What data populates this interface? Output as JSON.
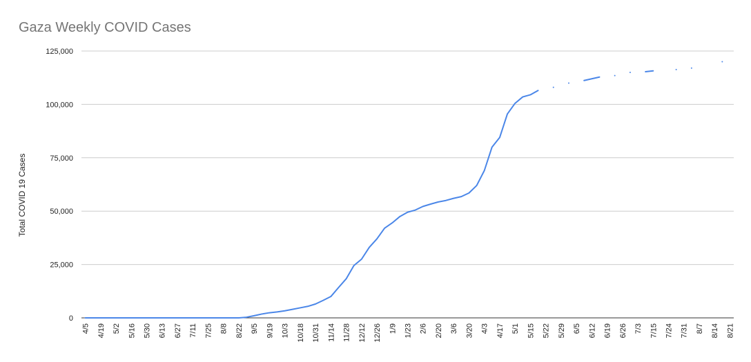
{
  "chart_data": {
    "type": "line",
    "title": "Gaza Weekly COVID Cases",
    "y_label": "Total COVID 19 Cases",
    "categories": [
      "4/5",
      null,
      "4/19",
      null,
      "5/2",
      null,
      "5/16",
      null,
      "5/30",
      null,
      "6/13",
      null,
      "6/27",
      null,
      "7/11",
      null,
      "7/25",
      null,
      "8/8",
      null,
      "8/22",
      null,
      "9/5",
      null,
      "9/19",
      null,
      "10/3",
      null,
      "10/18",
      null,
      "10/31",
      null,
      "11/14",
      null,
      "11/28",
      null,
      "12/12",
      null,
      "12/26",
      null,
      "1/9",
      null,
      "1/23",
      null,
      "2/6",
      null,
      "2/20",
      null,
      "3/6",
      null,
      "3/20",
      null,
      "4/3",
      null,
      "4/17",
      null,
      "5/1",
      null,
      "5/15",
      null,
      "5/22",
      null,
      "5/29",
      null,
      "6/5",
      null,
      "6/12",
      null,
      "6/19",
      null,
      "6/26",
      null,
      "7/3",
      null,
      "7/15",
      null,
      "7/24",
      null,
      "7/31",
      null,
      "8/7",
      null,
      "8/14",
      null,
      "8/21"
    ],
    "series": [
      {
        "name": "Total COVID 19 Cases",
        "color": "#4a86e8",
        "values": [
          0,
          0,
          0,
          0,
          0,
          0,
          0,
          0,
          0,
          0,
          0,
          0,
          0,
          0,
          0,
          0,
          0,
          0,
          0,
          0,
          0,
          300,
          1000,
          1800,
          2400,
          2800,
          3300,
          4000,
          4700,
          5400,
          6500,
          8200,
          10000,
          14200,
          18300,
          24500,
          27500,
          33000,
          37000,
          42000,
          44500,
          47500,
          49500,
          50500,
          52200,
          53300,
          54300,
          55000,
          56000,
          56800,
          58500,
          62000,
          69000,
          80000,
          84500,
          95500,
          100500,
          103500,
          104500,
          106500,
          null,
          108000,
          null,
          110000,
          null,
          111200,
          112000,
          112800,
          null,
          113500,
          null,
          115000,
          null,
          115300,
          115700,
          null,
          null,
          116300,
          null,
          117000,
          null,
          null,
          null,
          120000,
          null
        ]
      }
    ],
    "ylim": [
      0,
      125000
    ],
    "yticks": [
      0,
      {
        "value": 25000,
        "label": "25,000"
      },
      {
        "value": 50000,
        "label": "50,000"
      },
      {
        "value": 75000,
        "label": "75,000"
      },
      {
        "value": 100000,
        "label": "100,000"
      },
      {
        "value": 125000,
        "label": "125,000"
      }
    ],
    "grid": true
  }
}
